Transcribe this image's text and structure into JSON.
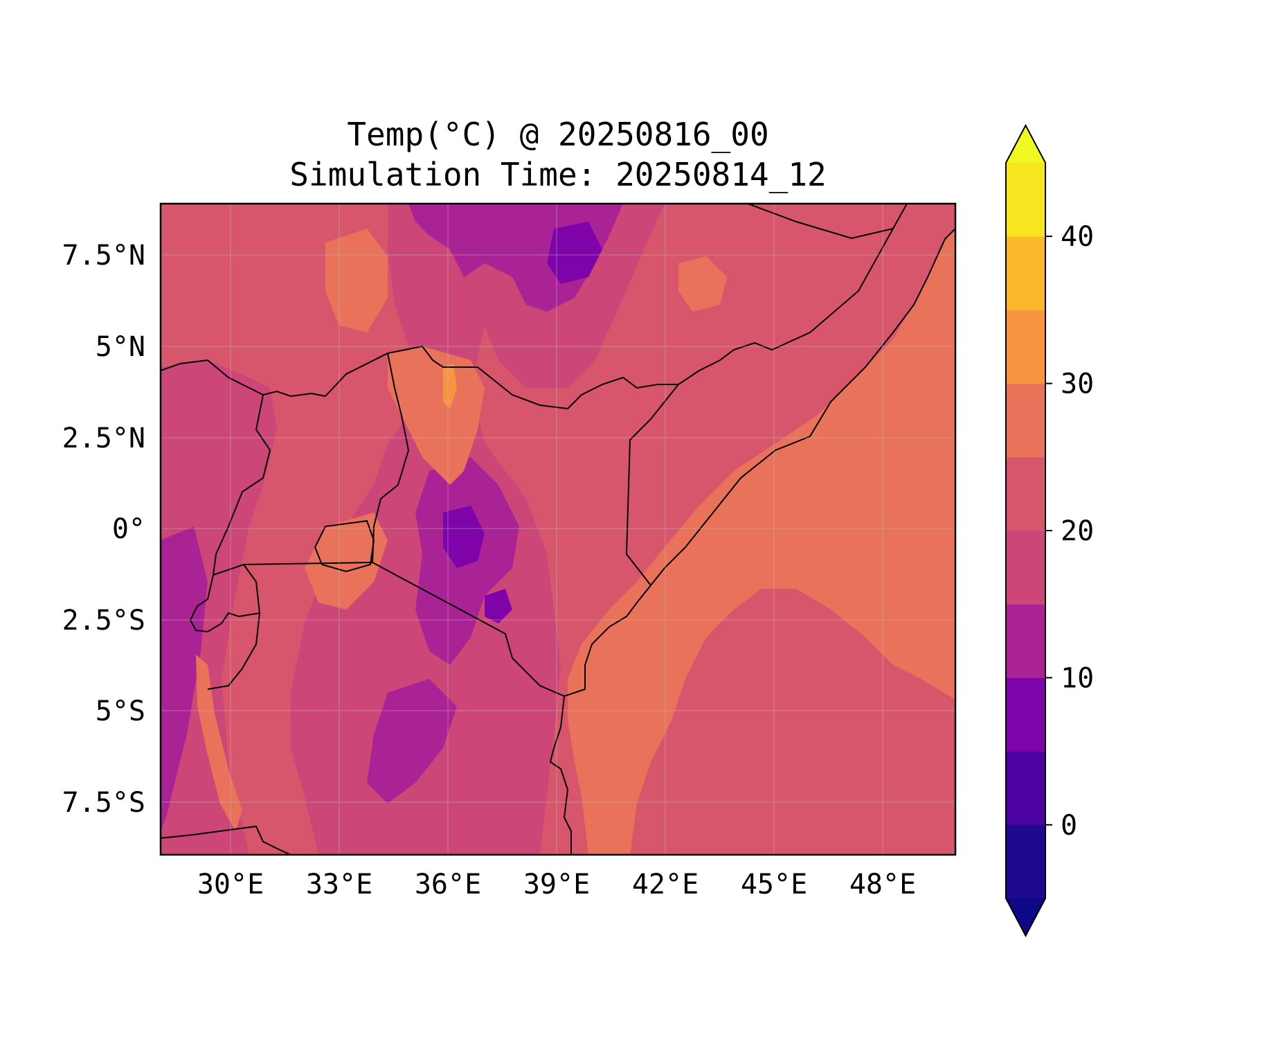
{
  "title": {
    "line1": "Temp(°C) @ 20250816_00",
    "line2": "Simulation Time: 20250814_12"
  },
  "map": {
    "region": "East Africa",
    "lon_range": [
      27.5,
      50.5
    ],
    "lat_range": [
      -9,
      9
    ],
    "lon_ticks": [
      {
        "value": 30,
        "label": "30°E"
      },
      {
        "value": 33,
        "label": "33°E"
      },
      {
        "value": 36,
        "label": "36°E"
      },
      {
        "value": 39,
        "label": "39°E"
      },
      {
        "value": 42,
        "label": "42°E"
      },
      {
        "value": 45,
        "label": "45°E"
      },
      {
        "value": 48,
        "label": "48°E"
      }
    ],
    "lat_ticks": [
      {
        "value": 7.5,
        "label": "7.5°N"
      },
      {
        "value": 5,
        "label": "5°N"
      },
      {
        "value": 2.5,
        "label": "2.5°N"
      },
      {
        "value": 0,
        "label": "0°"
      },
      {
        "value": -2.5,
        "label": "2.5°S"
      },
      {
        "value": -5,
        "label": "5°S"
      },
      {
        "value": -7.5,
        "label": "7.5°S"
      }
    ],
    "grid": true
  },
  "colorbar": {
    "levels": [
      -5,
      0,
      5,
      10,
      15,
      20,
      25,
      30,
      35,
      40,
      45
    ],
    "colors": [
      "#1d0a8c",
      "#4c02a1",
      "#7e03a8",
      "#a92395",
      "#cc4778",
      "#d7566c",
      "#e8735a",
      "#f89540",
      "#fdb72c",
      "#f5e61f"
    ],
    "under_color": "#0d0887",
    "over_color": "#f0f921",
    "extend": "both",
    "tick_labels": [
      "0",
      "10",
      "20",
      "30",
      "40"
    ],
    "tick_values": [
      0,
      10,
      20,
      30,
      40
    ]
  },
  "colors": {
    "ocean": "#e8735a",
    "land_base": "#d7566c",
    "cool_1": "#cc4778",
    "cool_2": "#a92395",
    "cool_3": "#7e03a8",
    "cool_4": "#4c02a1",
    "warm_1": "#e8735a",
    "warm_2": "#f89540"
  }
}
